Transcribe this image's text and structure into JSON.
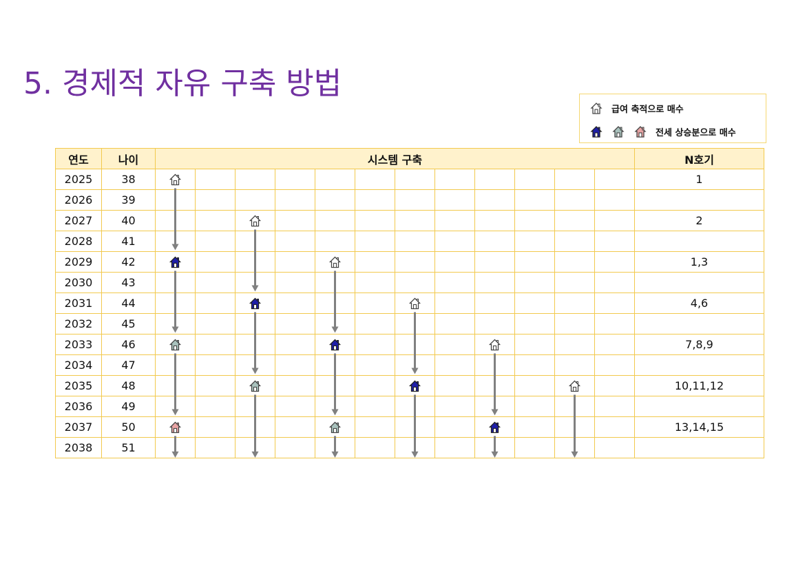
{
  "title": "5. 경제적 자유 구축 방법",
  "legend": {
    "salary_label": "급여 축적으로 매수",
    "jeonse_label": "전세 상승분으로 매수"
  },
  "colors": {
    "title": "#7030a0",
    "outline_house": "#ffffff",
    "blue_house": "#1f1fa8",
    "gray_house": "#a9c2bd",
    "pink_house": "#e8a4a4",
    "arrow": "#808080",
    "border": "#f2c94c",
    "header_bg": "#fff2cc"
  },
  "table": {
    "headers": {
      "year": "연도",
      "age": "나이",
      "system": "시스템 구축",
      "n": "N호기"
    },
    "rows": [
      {
        "year": "2025",
        "age": "38",
        "n": "1"
      },
      {
        "year": "2026",
        "age": "39",
        "n": ""
      },
      {
        "year": "2027",
        "age": "40",
        "n": "2"
      },
      {
        "year": "2028",
        "age": "41",
        "n": ""
      },
      {
        "year": "2029",
        "age": "42",
        "n": "1,3"
      },
      {
        "year": "2030",
        "age": "43",
        "n": ""
      },
      {
        "year": "2031",
        "age": "44",
        "n": "4,6"
      },
      {
        "year": "2032",
        "age": "45",
        "n": ""
      },
      {
        "year": "2033",
        "age": "46",
        "n": "7,8,9"
      },
      {
        "year": "2034",
        "age": "47",
        "n": ""
      },
      {
        "year": "2035",
        "age": "48",
        "n": "10,11,12"
      },
      {
        "year": "2036",
        "age": "49",
        "n": ""
      },
      {
        "year": "2037",
        "age": "50",
        "n": "13,14,15"
      },
      {
        "year": "2038",
        "age": "51",
        "n": ""
      }
    ]
  },
  "houses": [
    {
      "row": 0,
      "col": 0,
      "type": "outline"
    },
    {
      "row": 4,
      "col": 0,
      "type": "blue"
    },
    {
      "row": 8,
      "col": 0,
      "type": "gray"
    },
    {
      "row": 12,
      "col": 0,
      "type": "pink"
    },
    {
      "row": 2,
      "col": 2,
      "type": "outline"
    },
    {
      "row": 6,
      "col": 2,
      "type": "blue"
    },
    {
      "row": 10,
      "col": 2,
      "type": "gray"
    },
    {
      "row": 4,
      "col": 4,
      "type": "outline"
    },
    {
      "row": 8,
      "col": 4,
      "type": "blue"
    },
    {
      "row": 12,
      "col": 4,
      "type": "gray"
    },
    {
      "row": 6,
      "col": 6,
      "type": "outline"
    },
    {
      "row": 10,
      "col": 6,
      "type": "blue"
    },
    {
      "row": 8,
      "col": 8,
      "type": "outline"
    },
    {
      "row": 12,
      "col": 8,
      "type": "blue"
    },
    {
      "row": 10,
      "col": 10,
      "type": "outline"
    }
  ]
}
